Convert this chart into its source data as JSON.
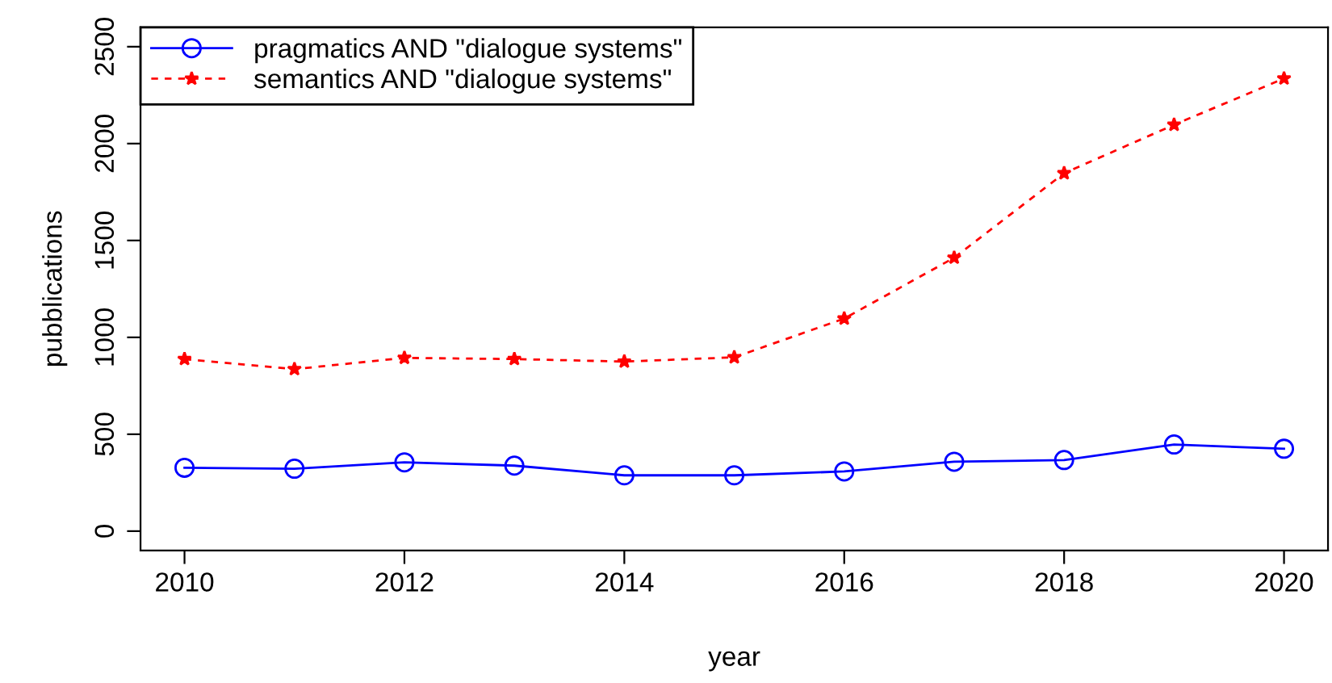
{
  "chart_data": {
    "type": "line",
    "xlabel": "year",
    "ylabel": "pubblications",
    "x": [
      2010,
      2011,
      2012,
      2013,
      2014,
      2015,
      2016,
      2017,
      2018,
      2019,
      2020
    ],
    "series": [
      {
        "name": "pragmatics AND \"dialogue systems\"",
        "color": "#0000ff",
        "marker": "circle",
        "line_style": "solid",
        "values": [
          327,
          322,
          355,
          338,
          288,
          288,
          308,
          358,
          367,
          447,
          425
        ]
      },
      {
        "name": "semantics AND \"dialogue systems\"",
        "color": "#ff0000",
        "marker": "star",
        "line_style": "dashed",
        "values": [
          888,
          836,
          894,
          888,
          875,
          897,
          1097,
          1411,
          1847,
          2097,
          2336
        ]
      }
    ],
    "xlim": [
      2009.6,
      2020.4
    ],
    "ylim": [
      -100,
      2600
    ],
    "xticks": [
      2010,
      2012,
      2014,
      2016,
      2018,
      2020
    ],
    "yticks": [
      0,
      500,
      1000,
      1500,
      2000,
      2500
    ],
    "grid": false,
    "legend": "top left"
  }
}
